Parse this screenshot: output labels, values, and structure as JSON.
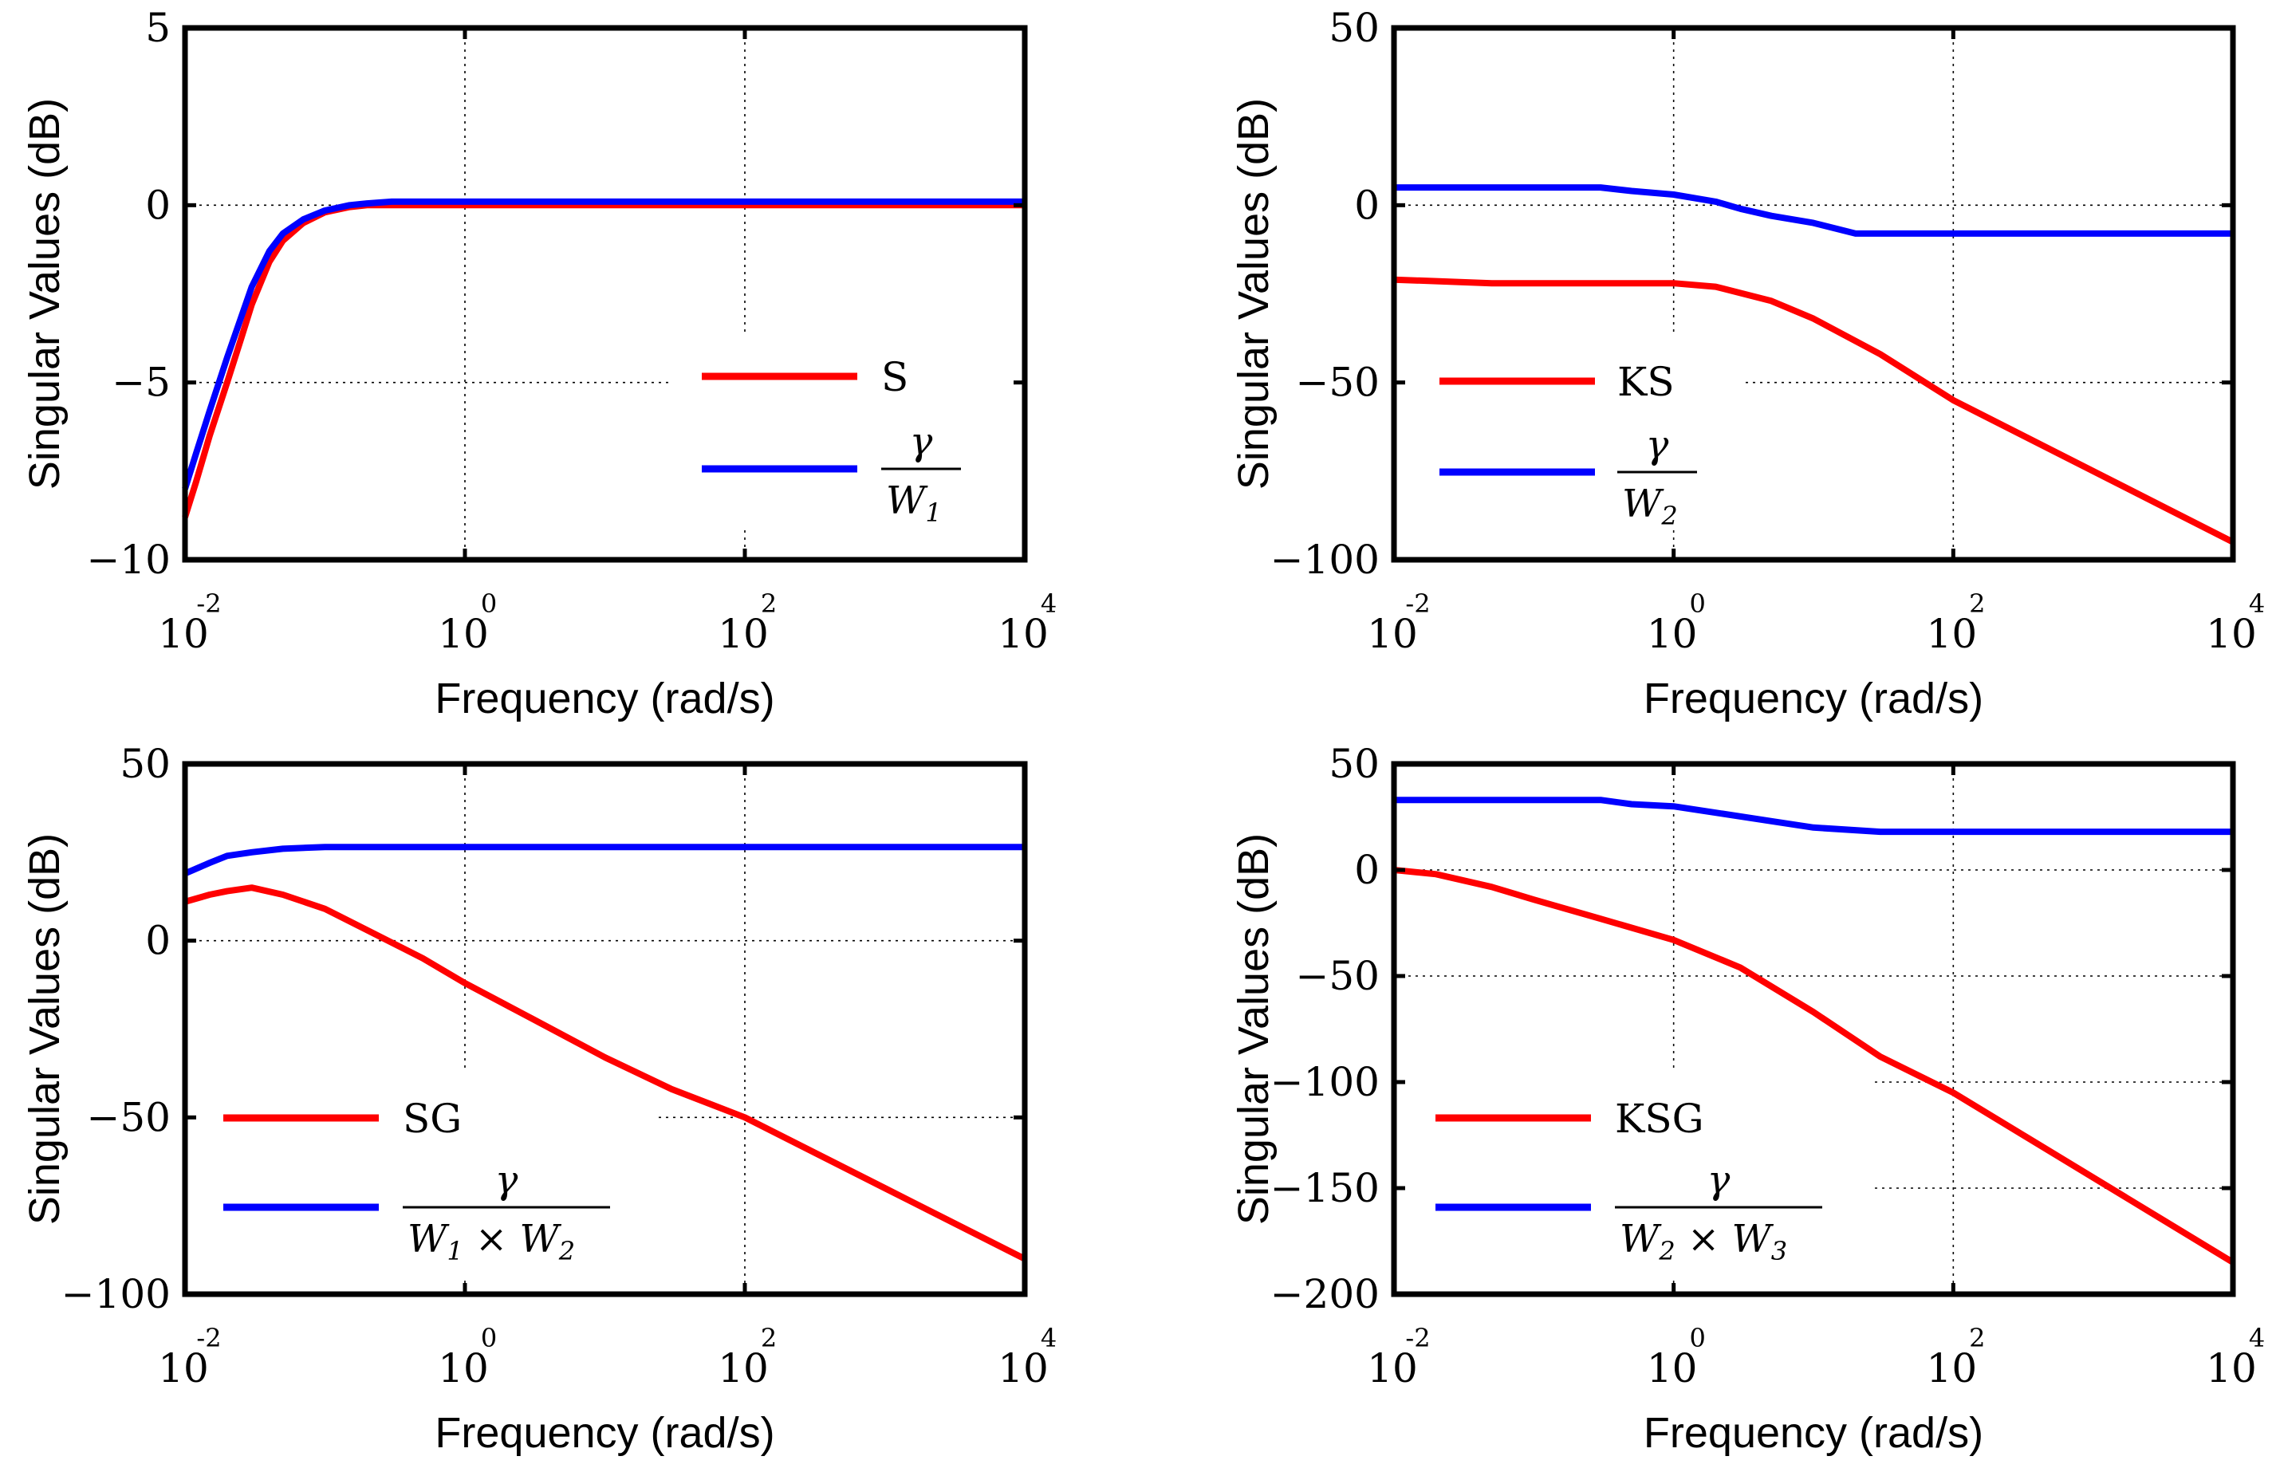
{
  "chart_data": [
    {
      "id": "p1",
      "type": "line",
      "xlabel": "Frequency (rad/s)",
      "ylabel": "Singular Values (dB)",
      "xscale": "log",
      "xlim": [
        0.01,
        10000
      ],
      "ylim": [
        -10,
        5
      ],
      "xticks": [
        {
          "base": "10",
          "exp": "-2"
        },
        {
          "base": "10",
          "exp": "0"
        },
        {
          "base": "10",
          "exp": "2"
        },
        {
          "base": "10",
          "exp": "4"
        }
      ],
      "yticks": [
        {
          "v": 5,
          "label": "5"
        },
        {
          "v": 0,
          "label": "0"
        },
        {
          "v": -5,
          "label": "−5"
        },
        {
          "v": -10,
          "label": "−10"
        }
      ],
      "grid": true,
      "legend_position": "right",
      "series": [
        {
          "name": "S",
          "color": "#ff0000",
          "x": [
            0.01,
            0.012,
            0.015,
            0.02,
            0.025,
            0.03,
            0.04,
            0.05,
            0.07,
            0.1,
            0.15,
            0.2,
            0.5,
            1,
            10,
            100,
            1000,
            10000
          ],
          "y": [
            -8.8,
            -7.8,
            -6.5,
            -5.0,
            -3.8,
            -2.8,
            -1.6,
            -1.0,
            -0.5,
            -0.2,
            -0.05,
            0.0,
            0.0,
            0.0,
            0.0,
            0.0,
            0.0,
            0.0
          ]
        },
        {
          "name": "γ/W1",
          "legend_num": "γ",
          "legend_den": "W",
          "legend_sub": "1",
          "color": "#0000ff",
          "x": [
            0.01,
            0.012,
            0.015,
            0.02,
            0.025,
            0.03,
            0.04,
            0.05,
            0.07,
            0.1,
            0.15,
            0.2,
            0.3,
            0.5,
            1,
            10,
            100,
            1000,
            10000
          ],
          "y": [
            -8.0,
            -7.0,
            -5.8,
            -4.3,
            -3.2,
            -2.3,
            -1.3,
            -0.8,
            -0.4,
            -0.15,
            0.0,
            0.05,
            0.1,
            0.1,
            0.1,
            0.1,
            0.1,
            0.1,
            0.1
          ]
        }
      ]
    },
    {
      "id": "p2",
      "type": "line",
      "xlabel": "Frequency (rad/s)",
      "ylabel": "Singular Values (dB)",
      "xscale": "log",
      "xlim": [
        0.01,
        10000
      ],
      "ylim": [
        -100,
        50
      ],
      "xticks": [
        {
          "base": "10",
          "exp": "-2"
        },
        {
          "base": "10",
          "exp": "0"
        },
        {
          "base": "10",
          "exp": "2"
        },
        {
          "base": "10",
          "exp": "4"
        }
      ],
      "yticks": [
        {
          "v": 50,
          "label": "50"
        },
        {
          "v": 0,
          "label": "0"
        },
        {
          "v": -50,
          "label": "−50"
        },
        {
          "v": -100,
          "label": "−100"
        }
      ],
      "grid": true,
      "legend_position": "bottom-left",
      "series": [
        {
          "name": "KS",
          "color": "#ff0000",
          "x": [
            0.01,
            0.05,
            0.1,
            1,
            2,
            5,
            10,
            30,
            100,
            1000,
            10000
          ],
          "y": [
            -21,
            -22,
            -22,
            -22,
            -23,
            -27,
            -32,
            -42,
            -55,
            -75,
            -95
          ]
        },
        {
          "name": "γ/W2",
          "legend_num": "γ",
          "legend_den": "W",
          "legend_sub": "2",
          "color": "#0000ff",
          "x": [
            0.01,
            0.3,
            0.5,
            1,
            2,
            3,
            5,
            10,
            20,
            100,
            1000,
            10000
          ],
          "y": [
            5,
            5,
            4,
            3,
            1,
            -1,
            -3,
            -5,
            -8,
            -8,
            -8,
            -8
          ]
        }
      ]
    },
    {
      "id": "p3",
      "type": "line",
      "xlabel": "Frequency (rad/s)",
      "ylabel": "Singular Values (dB)",
      "xscale": "log",
      "xlim": [
        0.01,
        10000
      ],
      "ylim": [
        -100,
        50
      ],
      "xticks": [
        {
          "base": "10",
          "exp": "-2"
        },
        {
          "base": "10",
          "exp": "0"
        },
        {
          "base": "10",
          "exp": "2"
        },
        {
          "base": "10",
          "exp": "4"
        }
      ],
      "yticks": [
        {
          "v": 50,
          "label": "50"
        },
        {
          "v": 0,
          "label": "0"
        },
        {
          "v": -50,
          "label": "−50"
        },
        {
          "v": -100,
          "label": "−100"
        }
      ],
      "grid": true,
      "legend_position": "bottom-left",
      "series": [
        {
          "name": "SG",
          "color": "#ff0000",
          "x": [
            0.01,
            0.015,
            0.02,
            0.03,
            0.05,
            0.1,
            0.2,
            0.5,
            1,
            3,
            10,
            30,
            100,
            1000,
            10000
          ],
          "y": [
            11,
            13,
            14,
            15,
            13,
            9,
            3,
            -5,
            -12,
            -22,
            -33,
            -42,
            -50,
            -70,
            -90
          ]
        },
        {
          "name": "γ/(W1×W2)",
          "legend_num": "γ",
          "legend_den": "W",
          "legend_sub": "1",
          "legend_den2": "W",
          "legend_sub2": "2",
          "color": "#0000ff",
          "x": [
            0.01,
            0.015,
            0.02,
            0.03,
            0.05,
            0.1,
            1,
            100,
            10000
          ],
          "y": [
            19,
            22,
            24,
            25,
            26,
            26.5,
            26.5,
            26.5,
            26.5
          ]
        }
      ]
    },
    {
      "id": "p4",
      "type": "line",
      "xlabel": "Frequency (rad/s)",
      "ylabel": "Singular Values (dB)",
      "xscale": "log",
      "xlim": [
        0.01,
        10000
      ],
      "ylim": [
        -200,
        50
      ],
      "xticks": [
        {
          "base": "10",
          "exp": "-2"
        },
        {
          "base": "10",
          "exp": "0"
        },
        {
          "base": "10",
          "exp": "2"
        },
        {
          "base": "10",
          "exp": "4"
        }
      ],
      "yticks": [
        {
          "v": 50,
          "label": "50"
        },
        {
          "v": 0,
          "label": "0"
        },
        {
          "v": -50,
          "label": "−50"
        },
        {
          "v": -100,
          "label": "−100"
        },
        {
          "v": -150,
          "label": "−150"
        },
        {
          "v": -200,
          "label": "−200"
        }
      ],
      "grid": true,
      "legend_position": "bottom-left",
      "series": [
        {
          "name": "KSG",
          "color": "#ff0000",
          "x": [
            0.01,
            0.02,
            0.05,
            0.1,
            0.3,
            1,
            3,
            10,
            30,
            100,
            1000,
            10000
          ],
          "y": [
            0,
            -2,
            -8,
            -14,
            -23,
            -33,
            -46,
            -67,
            -88,
            -105,
            -145,
            -185
          ]
        },
        {
          "name": "γ/(W2×W3)",
          "legend_num": "γ",
          "legend_den": "W",
          "legend_sub": "2",
          "legend_den2": "W",
          "legend_sub2": "3",
          "color": "#0000ff",
          "x": [
            0.01,
            0.1,
            0.3,
            0.5,
            1,
            2,
            5,
            10,
            30,
            100,
            1000,
            10000
          ],
          "y": [
            33,
            33,
            33,
            31,
            30,
            27,
            23,
            20,
            18,
            18,
            18,
            18
          ]
        }
      ]
    }
  ]
}
